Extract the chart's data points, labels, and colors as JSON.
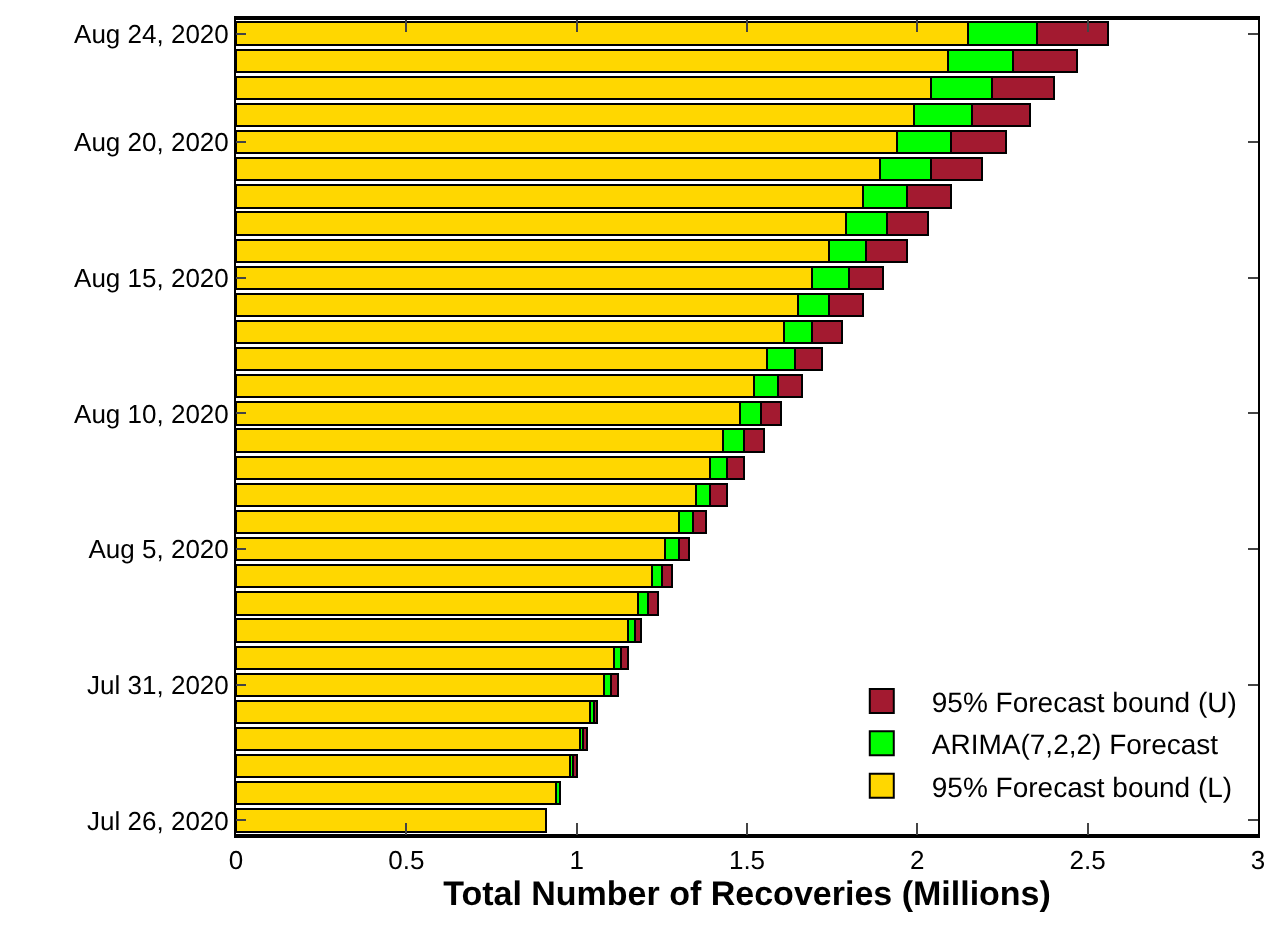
{
  "chart_data": {
    "type": "bar",
    "orientation": "horizontal",
    "stacked": true,
    "xlabel": "Total Number of Recoveries (Millions)",
    "categories": [
      "Aug 24, 2020",
      null,
      null,
      null,
      "Aug 20, 2020",
      null,
      null,
      null,
      null,
      "Aug 15, 2020",
      null,
      null,
      null,
      null,
      "Aug 10, 2020",
      null,
      null,
      null,
      null,
      "Aug 5, 2020",
      null,
      null,
      null,
      null,
      "Jul 31, 2020",
      null,
      null,
      null,
      null,
      "Jul 26, 2020"
    ],
    "series": [
      {
        "name": "95% Forecast bound (L)",
        "color": "#ffd700",
        "values": [
          2.15,
          2.09,
          2.04,
          1.99,
          1.94,
          1.89,
          1.84,
          1.79,
          1.74,
          1.69,
          1.65,
          1.61,
          1.56,
          1.52,
          1.48,
          1.43,
          1.39,
          1.35,
          1.3,
          1.26,
          1.22,
          1.18,
          1.15,
          1.11,
          1.08,
          1.04,
          1.01,
          0.98,
          0.94,
          0.91
        ]
      },
      {
        "name": "ARIMA(7,2,2) Forecast",
        "color": "#00ff00",
        "values": [
          0.2,
          0.19,
          0.18,
          0.17,
          0.16,
          0.15,
          0.13,
          0.12,
          0.11,
          0.11,
          0.09,
          0.08,
          0.08,
          0.07,
          0.06,
          0.06,
          0.05,
          0.04,
          0.04,
          0.04,
          0.03,
          0.03,
          0.02,
          0.02,
          0.02,
          0.01,
          0.01,
          0.01,
          0.01,
          0.0
        ]
      },
      {
        "name": "95% Forecast bound (U)",
        "color": "#a31a30",
        "values": [
          0.21,
          0.19,
          0.18,
          0.17,
          0.16,
          0.15,
          0.13,
          0.12,
          0.12,
          0.1,
          0.1,
          0.09,
          0.08,
          0.07,
          0.06,
          0.06,
          0.05,
          0.05,
          0.04,
          0.03,
          0.03,
          0.03,
          0.02,
          0.02,
          0.02,
          0.01,
          0.01,
          0.01,
          0.0,
          0.0
        ]
      }
    ],
    "xlim": [
      0,
      3
    ],
    "xticks": [
      0,
      0.5,
      1,
      1.5,
      2,
      2.5,
      3
    ],
    "grid": false,
    "legend": "bottom right"
  }
}
